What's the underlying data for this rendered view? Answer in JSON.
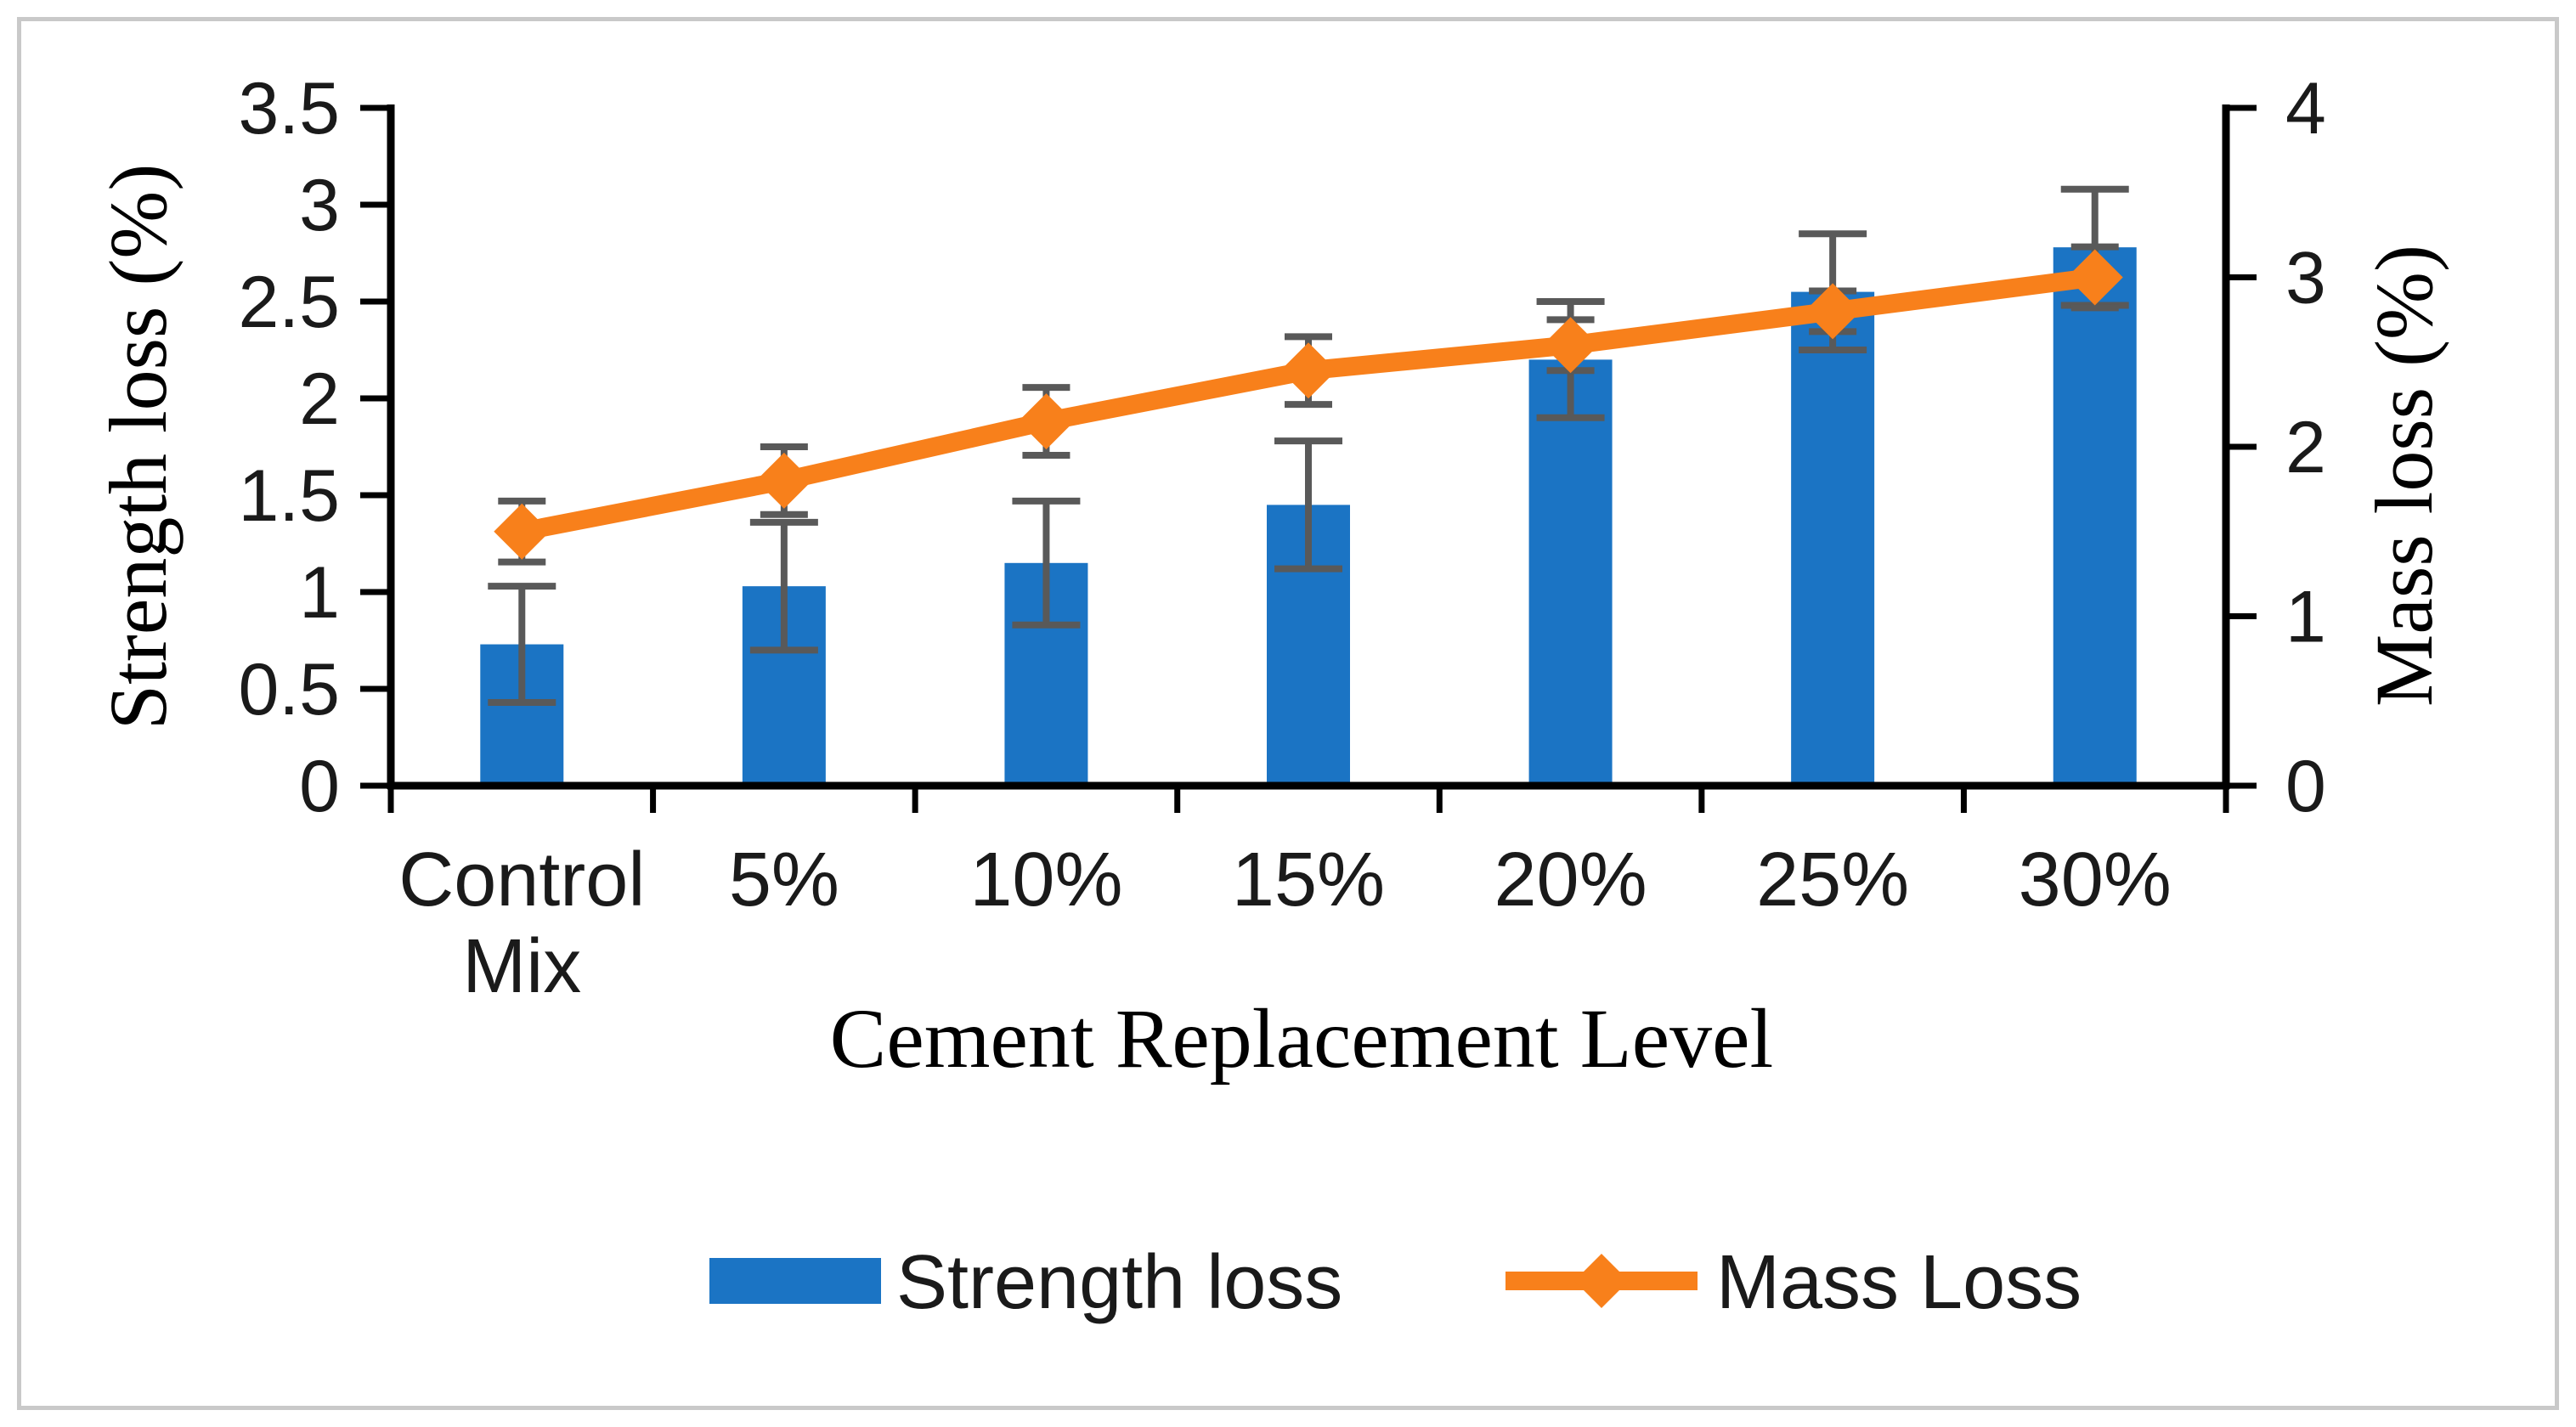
{
  "chart_data": {
    "type": "bar+line combo",
    "categories": [
      "Control Mix",
      "5%",
      "10%",
      "15%",
      "20%",
      "25%",
      "30%"
    ],
    "series": [
      {
        "name": "Strength loss",
        "type": "bar",
        "axis": "left",
        "color": "#1b74c4",
        "values": [
          0.73,
          1.03,
          1.15,
          1.45,
          2.2,
          2.55,
          2.78
        ],
        "errors": [
          0.3,
          0.33,
          0.32,
          0.33,
          0.3,
          0.3,
          0.3
        ]
      },
      {
        "name": "Mass Loss",
        "type": "line",
        "axis": "right",
        "color": "#f8801b",
        "marker": "diamond",
        "values": [
          1.5,
          1.8,
          2.15,
          2.45,
          2.6,
          2.8,
          3.0
        ],
        "errors": [
          0.18,
          0.2,
          0.2,
          0.2,
          0.15,
          0.12,
          0.18
        ]
      }
    ],
    "left_axis": {
      "title": "Strength loss (%)",
      "min": 0,
      "max": 3.5,
      "tick_labels": [
        "0",
        "0.5",
        "1",
        "1.5",
        "2",
        "2.5",
        "3",
        "3.5"
      ]
    },
    "right_axis": {
      "title": "Mass loss (%)",
      "min": 0,
      "max": 4,
      "tick_labels": [
        "0",
        "1",
        "2",
        "3",
        "4"
      ]
    },
    "x_axis": {
      "title": "Cement Replacement Level"
    },
    "legend_position": "bottom",
    "grid": "off",
    "error_bar_color": "#595959",
    "axis_color": "#000000",
    "frame_color": "#c9c9c9"
  }
}
